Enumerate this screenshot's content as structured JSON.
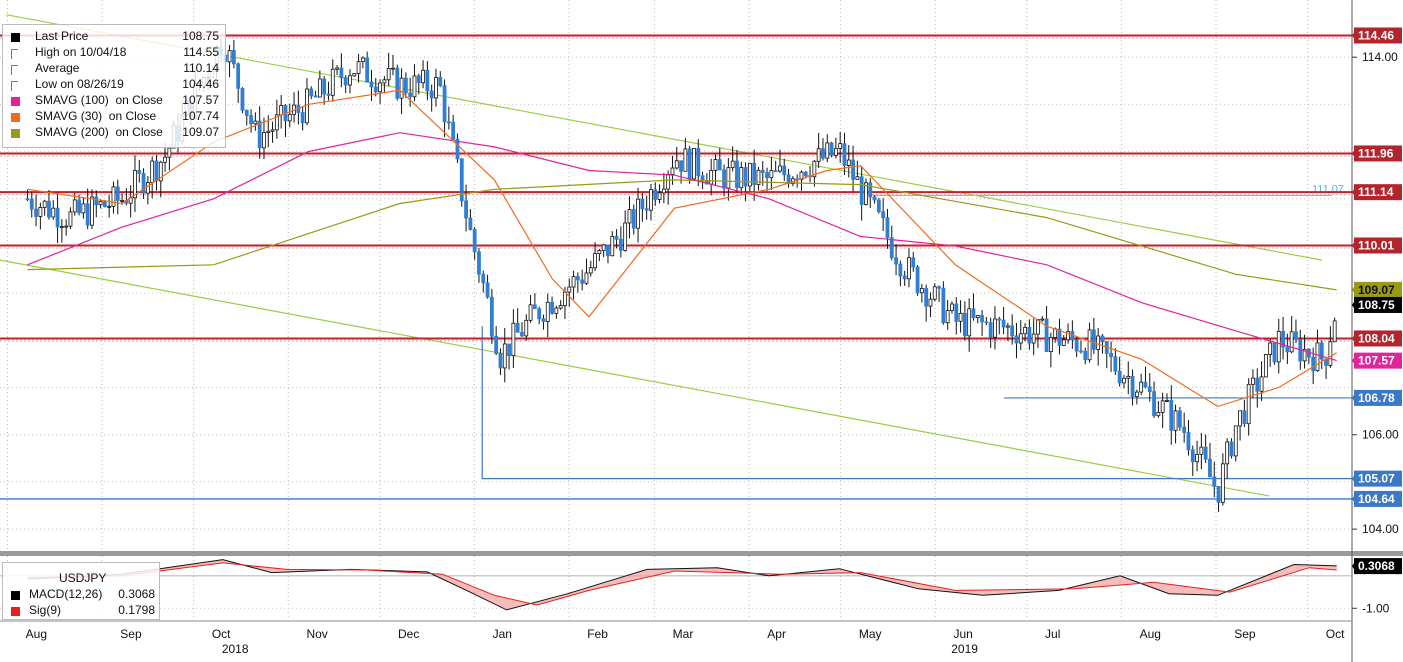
{
  "legend": [
    {
      "label": "Last Price",
      "value": "108.75",
      "color": "#000000",
      "marker": "square"
    },
    {
      "label": "High on 10/04/18",
      "value": "114.55",
      "color": "#777777",
      "marker": "tee"
    },
    {
      "label": "Average",
      "value": "110.14",
      "color": "#777777",
      "marker": "dash"
    },
    {
      "label": "Low on 08/26/19",
      "value": "104.46",
      "color": "#777777",
      "marker": "tee-down"
    },
    {
      "label": "SMAVG (100)  on Close",
      "value": "107.57",
      "color": "#e0249a",
      "marker": "square"
    },
    {
      "label": "SMAVG (30)  on Close",
      "value": "107.74",
      "color": "#f26b1d",
      "marker": "square"
    },
    {
      "label": "SMAVG (200)  on Close",
      "value": "109.07",
      "color": "#9a9a14",
      "marker": "square"
    }
  ],
  "macd_legend": {
    "title": "USDJPY",
    "rows": [
      {
        "label": "MACD(12,26)",
        "value": "0.3068",
        "color": "#000000"
      },
      {
        "label": "Sig(9)",
        "value": "0.1798",
        "color": "#e8201e"
      }
    ]
  },
  "chart_data": {
    "type": "candlestick",
    "title": "USDJPY",
    "ylim": [
      103.6,
      115.0
    ],
    "y_ticks": [
      104.0,
      106.0,
      114.0
    ],
    "y_tick_labels": [
      "104.00",
      "106.00",
      "114.00"
    ],
    "x_months": [
      "Aug",
      "Sep",
      "Oct",
      "Nov",
      "Dec",
      "Jan",
      "Feb",
      "Mar",
      "Apr",
      "May",
      "Jun",
      "Jul",
      "Aug",
      "Sep",
      "Oct"
    ],
    "x_years": [
      "2018",
      "2019"
    ],
    "close_points": [
      [
        "2018-08-01",
        111.0
      ],
      [
        "2018-08-15",
        110.6
      ],
      [
        "2018-09-01",
        111.0
      ],
      [
        "2018-09-15",
        111.9
      ],
      [
        "2018-10-04",
        114.4
      ],
      [
        "2018-10-15",
        112.3
      ],
      [
        "2018-11-01",
        113.0
      ],
      [
        "2018-11-15",
        113.8
      ],
      [
        "2018-12-01",
        113.4
      ],
      [
        "2018-12-14",
        113.4
      ],
      [
        "2018-12-24",
        110.3
      ],
      [
        "2019-01-03",
        107.7
      ],
      [
        "2019-01-15",
        108.6
      ],
      [
        "2019-02-01",
        109.5
      ],
      [
        "2019-02-15",
        110.5
      ],
      [
        "2019-03-01",
        111.9
      ],
      [
        "2019-03-15",
        111.5
      ],
      [
        "2019-04-01",
        111.4
      ],
      [
        "2019-04-24",
        112.0
      ],
      [
        "2019-05-01",
        111.2
      ],
      [
        "2019-05-15",
        109.6
      ],
      [
        "2019-06-01",
        108.4
      ],
      [
        "2019-06-15",
        108.3
      ],
      [
        "2019-07-01",
        108.1
      ],
      [
        "2019-07-15",
        107.9
      ],
      [
        "2019-08-01",
        107.0
      ],
      [
        "2019-08-15",
        106.1
      ],
      [
        "2019-08-26",
        104.8
      ],
      [
        "2019-09-01",
        106.2
      ],
      [
        "2019-09-15",
        108.0
      ],
      [
        "2019-09-30",
        107.6
      ],
      [
        "2019-10-04",
        108.75
      ]
    ],
    "sma30": [
      [
        "2018-08-01",
        111.2
      ],
      [
        "2018-09-01",
        110.9
      ],
      [
        "2018-10-01",
        112.2
      ],
      [
        "2018-11-01",
        113.0
      ],
      [
        "2018-12-01",
        113.3
      ],
      [
        "2019-01-01",
        111.4
      ],
      [
        "2019-01-20",
        109.3
      ],
      [
        "2019-02-01",
        108.5
      ],
      [
        "2019-03-01",
        110.8
      ],
      [
        "2019-04-01",
        111.2
      ],
      [
        "2019-04-20",
        111.6
      ],
      [
        "2019-05-01",
        111.7
      ],
      [
        "2019-06-01",
        109.6
      ],
      [
        "2019-07-01",
        108.3
      ],
      [
        "2019-08-01",
        107.6
      ],
      [
        "2019-08-26",
        106.6
      ],
      [
        "2019-09-15",
        107.0
      ],
      [
        "2019-10-04",
        107.74
      ]
    ],
    "sma100": [
      [
        "2018-08-01",
        109.6
      ],
      [
        "2018-09-01",
        110.4
      ],
      [
        "2018-10-01",
        111.0
      ],
      [
        "2018-11-01",
        112.0
      ],
      [
        "2018-12-01",
        112.4
      ],
      [
        "2019-01-01",
        112.1
      ],
      [
        "2019-02-01",
        111.6
      ],
      [
        "2019-03-01",
        111.5
      ],
      [
        "2019-04-01",
        111.0
      ],
      [
        "2019-05-01",
        110.2
      ],
      [
        "2019-06-01",
        110.0
      ],
      [
        "2019-07-01",
        109.6
      ],
      [
        "2019-08-01",
        108.8
      ],
      [
        "2019-09-01",
        108.2
      ],
      [
        "2019-10-04",
        107.57
      ]
    ],
    "sma200": [
      [
        "2018-08-01",
        109.5
      ],
      [
        "2018-10-01",
        109.6
      ],
      [
        "2018-12-01",
        110.9
      ],
      [
        "2019-01-01",
        111.2
      ],
      [
        "2019-03-01",
        111.4
      ],
      [
        "2019-05-01",
        111.3
      ],
      [
        "2019-07-01",
        110.6
      ],
      [
        "2019-09-01",
        109.4
      ],
      [
        "2019-10-04",
        109.07
      ]
    ],
    "horizontal_levels": [
      {
        "value": 114.46,
        "label": "114.46",
        "color": "#c0202a"
      },
      {
        "value": 111.96,
        "label": "111.96",
        "color": "#c0202a"
      },
      {
        "value": 111.14,
        "label": "111.14",
        "color": "#c0202a"
      },
      {
        "value": 110.01,
        "label": "110.01",
        "color": "#c0202a"
      },
      {
        "value": 108.04,
        "label": "108.04",
        "color": "#c0202a"
      },
      {
        "value": 106.78,
        "label": "106.78",
        "color": "#3a78c8"
      },
      {
        "value": 105.07,
        "label": "105.07",
        "color": "#3a78c8"
      },
      {
        "value": 104.64,
        "label": "104.64",
        "color": "#3a78c8"
      }
    ],
    "right_tags": [
      {
        "value": 109.07,
        "label": "109.07",
        "color": "#9a9a14"
      },
      {
        "value": 108.75,
        "label": "108.75",
        "color": "#000000"
      },
      {
        "value": 107.57,
        "label": "107.57",
        "color": "#e0249a"
      }
    ],
    "annotation": {
      "value": 111.07,
      "label": "111.07",
      "color": "#5ab4d6"
    },
    "macd": {
      "ylim": [
        -1.3,
        0.55
      ],
      "y_tick_labels": [
        "-1.00"
      ],
      "last": "0.3068",
      "points": [
        [
          "2018-08-01",
          -0.1
        ],
        [
          "2018-09-01",
          0.05
        ],
        [
          "2018-10-04",
          0.5
        ],
        [
          "2018-10-20",
          0.1
        ],
        [
          "2018-11-15",
          0.2
        ],
        [
          "2018-12-10",
          0.12
        ],
        [
          "2018-12-24",
          -0.5
        ],
        [
          "2019-01-05",
          -1.05
        ],
        [
          "2019-01-25",
          -0.55
        ],
        [
          "2019-02-20",
          0.2
        ],
        [
          "2019-03-15",
          0.25
        ],
        [
          "2019-04-01",
          0.0
        ],
        [
          "2019-04-24",
          0.22
        ],
        [
          "2019-05-20",
          -0.4
        ],
        [
          "2019-06-10",
          -0.6
        ],
        [
          "2019-07-05",
          -0.45
        ],
        [
          "2019-07-25",
          0.0
        ],
        [
          "2019-08-10",
          -0.55
        ],
        [
          "2019-08-26",
          -0.6
        ],
        [
          "2019-09-20",
          0.35
        ],
        [
          "2019-10-04",
          0.3068
        ]
      ],
      "signal": [
        [
          "2018-08-01",
          -0.05
        ],
        [
          "2018-09-01",
          0.0
        ],
        [
          "2018-10-04",
          0.4
        ],
        [
          "2018-10-25",
          0.2
        ],
        [
          "2018-11-20",
          0.18
        ],
        [
          "2018-12-15",
          0.05
        ],
        [
          "2019-01-01",
          -0.6
        ],
        [
          "2019-01-15",
          -0.9
        ],
        [
          "2019-02-01",
          -0.45
        ],
        [
          "2019-03-01",
          0.15
        ],
        [
          "2019-04-05",
          0.05
        ],
        [
          "2019-05-01",
          0.1
        ],
        [
          "2019-06-01",
          -0.45
        ],
        [
          "2019-07-10",
          -0.4
        ],
        [
          "2019-08-05",
          -0.2
        ],
        [
          "2019-08-30",
          -0.5
        ],
        [
          "2019-09-25",
          0.25
        ],
        [
          "2019-10-04",
          0.1798
        ]
      ]
    }
  }
}
